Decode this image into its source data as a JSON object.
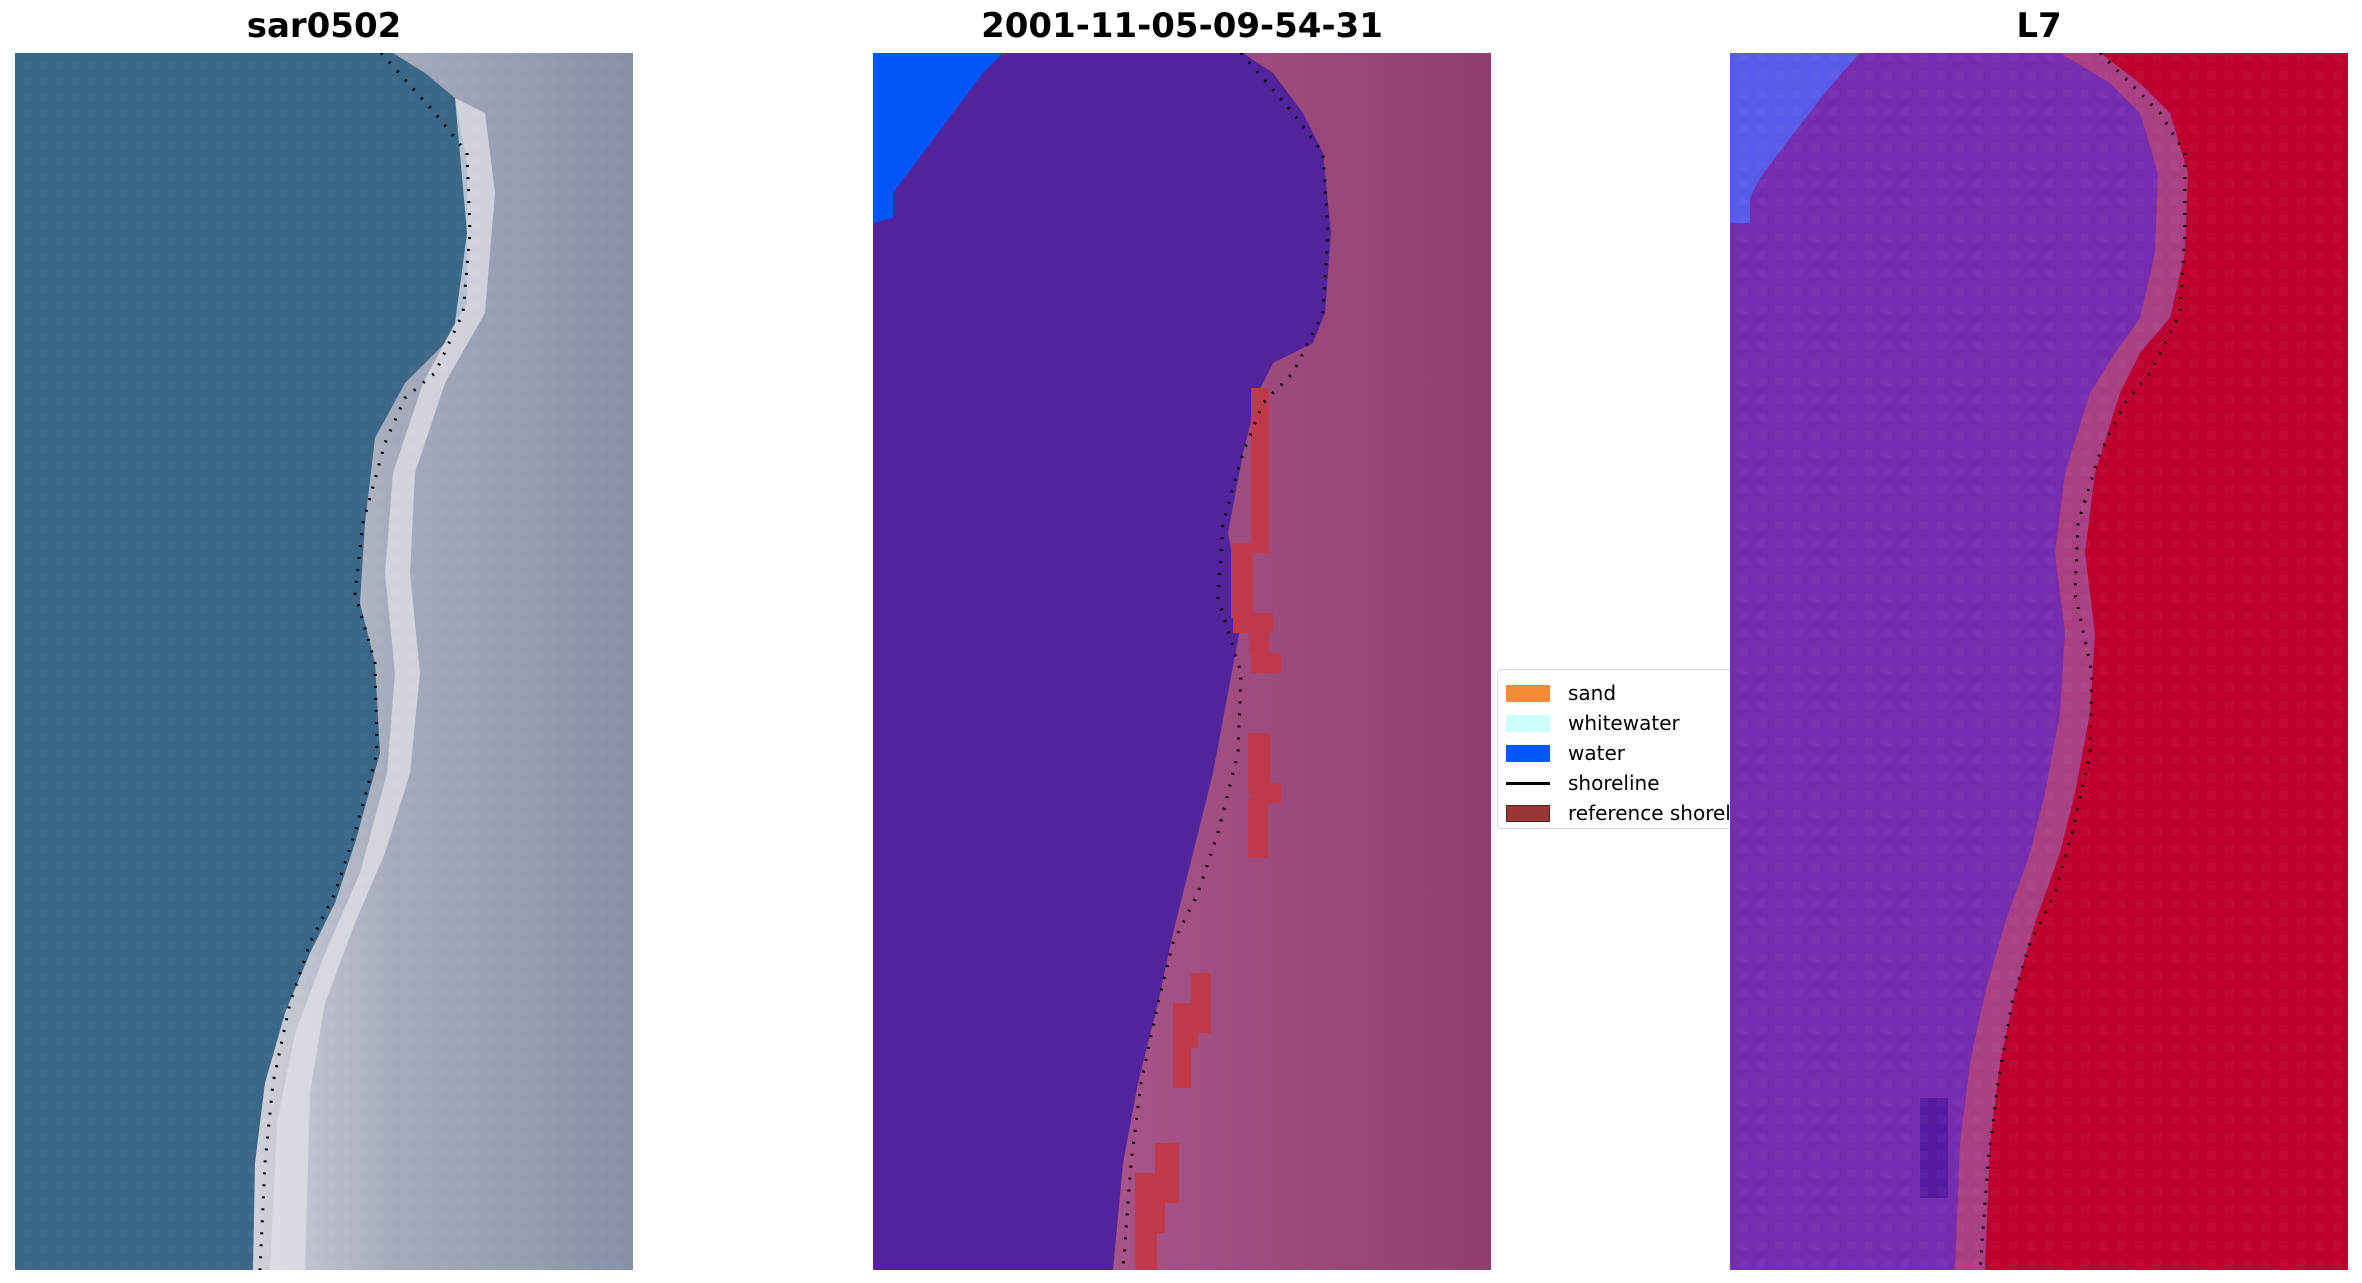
{
  "panels": [
    {
      "title": "sar0502"
    },
    {
      "title": "2001-11-05-09-54-31"
    },
    {
      "title": "L7"
    }
  ],
  "legend": {
    "items": [
      {
        "label": "sand",
        "color": "#f58a35",
        "kind": "patch"
      },
      {
        "label": "whitewater",
        "color": "#ccfffa",
        "kind": "patch"
      },
      {
        "label": "water",
        "color": "#0057f5",
        "kind": "patch"
      },
      {
        "label": "shoreline",
        "color": "#000000",
        "kind": "line"
      },
      {
        "label": "reference shoreline",
        "color": "#9b3535",
        "kind": "patch"
      }
    ]
  },
  "colors": {
    "rgb_water": "#3d6a8e",
    "rgb_sand": "#c8c8d0",
    "classified_water": "#52239a",
    "classified_land": "#a04a82",
    "classified_ocean_blue": "#0057f5",
    "reference_shore": "#c0394a",
    "ndwi_water": "#7b32b4",
    "ndwi_land": "#c4002f",
    "ndwi_blue": "#5a5ef0"
  }
}
